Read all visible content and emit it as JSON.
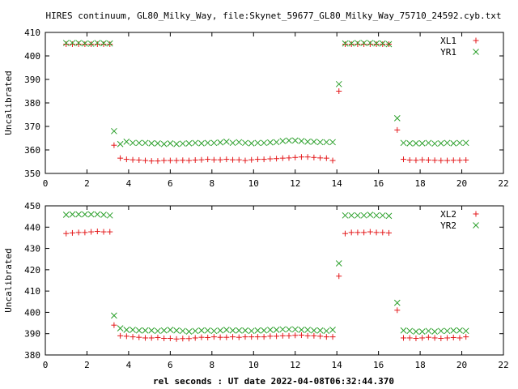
{
  "title": "HIRES continuum, GL80_Milky_Way, file:Skynet_59677_GL80_Milky_Way_75710_24592.cyb.txt",
  "xlabel": "rel seconds : UT date 2022-04-08T06:32:44.370",
  "colors": {
    "red": "#e41a1c",
    "green": "#2ca02c"
  },
  "chart_data": [
    {
      "type": "scatter",
      "ylabel": "Uncalibrated",
      "xlim": [
        0,
        22
      ],
      "ylim": [
        350,
        410
      ],
      "xticks": [
        0,
        2,
        4,
        6,
        8,
        10,
        12,
        14,
        16,
        18,
        20,
        22
      ],
      "yticks": [
        350,
        360,
        370,
        380,
        390,
        400,
        410
      ],
      "legend_position": "top-right",
      "series": [
        {
          "name": "XL1",
          "marker": "plus",
          "color": "#e41a1c",
          "x": [
            1.0,
            1.3,
            1.6,
            1.9,
            2.2,
            2.5,
            2.8,
            3.1,
            3.3,
            3.6,
            3.9,
            4.2,
            4.5,
            4.8,
            5.1,
            5.4,
            5.7,
            6.0,
            6.3,
            6.6,
            6.9,
            7.2,
            7.5,
            7.8,
            8.1,
            8.4,
            8.7,
            9.0,
            9.3,
            9.6,
            9.9,
            10.2,
            10.5,
            10.8,
            11.1,
            11.4,
            11.7,
            12.0,
            12.3,
            12.6,
            12.9,
            13.2,
            13.5,
            13.8,
            14.1,
            14.4,
            14.7,
            15.0,
            15.3,
            15.6,
            15.9,
            16.2,
            16.5,
            16.9,
            17.2,
            17.5,
            17.8,
            18.1,
            18.4,
            18.7,
            19.0,
            19.3,
            19.6,
            19.9,
            20.2
          ],
          "y": [
            405,
            405,
            405,
            405,
            405,
            405,
            405,
            405,
            362,
            356.5,
            356,
            355.8,
            355.7,
            355.5,
            355.3,
            355.3,
            355.5,
            355.5,
            355.5,
            355.6,
            355.5,
            355.7,
            355.8,
            356,
            355.8,
            355.8,
            356,
            355.8,
            355.8,
            355.5,
            355.8,
            356,
            356,
            356.2,
            356.3,
            356.5,
            356.6,
            356.8,
            357,
            357,
            356.8,
            356.6,
            356.5,
            355.5,
            385,
            405,
            405,
            405,
            405,
            405,
            405,
            405,
            405,
            368.5,
            356,
            355.7,
            355.6,
            355.8,
            355.7,
            355.6,
            355.5,
            355.5,
            355.6,
            355.6,
            355.7
          ]
        },
        {
          "name": "YR1",
          "marker": "cross",
          "color": "#2ca02c",
          "x": [
            1.0,
            1.3,
            1.6,
            1.9,
            2.2,
            2.5,
            2.8,
            3.1,
            3.3,
            3.6,
            3.9,
            4.2,
            4.5,
            4.8,
            5.1,
            5.4,
            5.7,
            6.0,
            6.3,
            6.6,
            6.9,
            7.2,
            7.5,
            7.8,
            8.1,
            8.4,
            8.7,
            9.0,
            9.3,
            9.6,
            9.9,
            10.2,
            10.5,
            10.8,
            11.1,
            11.4,
            11.7,
            12.0,
            12.3,
            12.6,
            12.9,
            13.2,
            13.5,
            13.8,
            14.1,
            14.4,
            14.7,
            15.0,
            15.3,
            15.6,
            15.9,
            16.2,
            16.5,
            16.9,
            17.2,
            17.5,
            17.8,
            18.1,
            18.4,
            18.7,
            19.0,
            19.3,
            19.6,
            19.9,
            20.2
          ],
          "y": [
            405.5,
            405.5,
            405.5,
            405.3,
            405.2,
            405.5,
            405.4,
            405.3,
            368,
            362.5,
            363.5,
            363,
            363,
            363,
            362.8,
            362.8,
            362.5,
            362.8,
            362.5,
            362.7,
            362.8,
            363,
            362.8,
            363,
            363,
            363.2,
            363.5,
            363,
            363.3,
            363,
            362.8,
            363,
            363,
            363.2,
            363.3,
            363.8,
            364,
            364,
            363.8,
            363.5,
            363.5,
            363.3,
            363.3,
            363.3,
            388,
            405.3,
            405.3,
            405.5,
            405.5,
            405.5,
            405.3,
            405.3,
            405,
            373.5,
            363,
            362.8,
            362.8,
            362.8,
            363,
            362.7,
            362.8,
            363,
            362.8,
            363,
            363
          ]
        }
      ]
    },
    {
      "type": "scatter",
      "ylabel": "Uncalibrated",
      "xlim": [
        0,
        22
      ],
      "ylim": [
        380,
        450
      ],
      "xticks": [
        0,
        2,
        4,
        6,
        8,
        10,
        12,
        14,
        16,
        18,
        20,
        22
      ],
      "yticks": [
        380,
        390,
        400,
        410,
        420,
        430,
        440,
        450
      ],
      "legend_position": "top-right",
      "series": [
        {
          "name": "XL2",
          "marker": "plus",
          "color": "#e41a1c",
          "x": [
            1.0,
            1.3,
            1.6,
            1.9,
            2.2,
            2.5,
            2.8,
            3.1,
            3.3,
            3.6,
            3.9,
            4.2,
            4.5,
            4.8,
            5.1,
            5.4,
            5.7,
            6.0,
            6.3,
            6.6,
            6.9,
            7.2,
            7.5,
            7.8,
            8.1,
            8.4,
            8.7,
            9.0,
            9.3,
            9.6,
            9.9,
            10.2,
            10.5,
            10.8,
            11.1,
            11.4,
            11.7,
            12.0,
            12.3,
            12.6,
            12.9,
            13.2,
            13.5,
            13.8,
            14.1,
            14.4,
            14.7,
            15.0,
            15.3,
            15.6,
            15.9,
            16.2,
            16.5,
            16.9,
            17.2,
            17.5,
            17.8,
            18.1,
            18.4,
            18.7,
            19.0,
            19.3,
            19.6,
            19.9,
            20.2
          ],
          "y": [
            437,
            437.3,
            437.5,
            437.5,
            437.8,
            438,
            437.8,
            437.8,
            394,
            389,
            388.8,
            388.5,
            388.3,
            388,
            388,
            388.2,
            387.8,
            387.8,
            387.5,
            387.7,
            387.7,
            388,
            388.3,
            388.2,
            388.5,
            388.3,
            388.3,
            388.5,
            388.3,
            388.5,
            388.5,
            388.5,
            388.5,
            388.8,
            388.8,
            389,
            389,
            389.2,
            389.3,
            389,
            389,
            388.8,
            388.5,
            388.5,
            417,
            437,
            437.5,
            437.5,
            437.5,
            437.8,
            437.5,
            437.5,
            437.3,
            401,
            388,
            388,
            387.8,
            388,
            388.3,
            388,
            387.8,
            388,
            388.2,
            388,
            388.5
          ]
        },
        {
          "name": "YR2",
          "marker": "cross",
          "color": "#2ca02c",
          "x": [
            1.0,
            1.3,
            1.6,
            1.9,
            2.2,
            2.5,
            2.8,
            3.1,
            3.3,
            3.6,
            3.9,
            4.2,
            4.5,
            4.8,
            5.1,
            5.4,
            5.7,
            6.0,
            6.3,
            6.6,
            6.9,
            7.2,
            7.5,
            7.8,
            8.1,
            8.4,
            8.7,
            9.0,
            9.3,
            9.6,
            9.9,
            10.2,
            10.5,
            10.8,
            11.1,
            11.4,
            11.7,
            12.0,
            12.3,
            12.6,
            12.9,
            13.2,
            13.5,
            13.8,
            14.1,
            14.4,
            14.7,
            15.0,
            15.3,
            15.6,
            15.9,
            16.2,
            16.5,
            16.9,
            17.2,
            17.5,
            17.8,
            18.1,
            18.4,
            18.7,
            19.0,
            19.3,
            19.6,
            19.9,
            20.2
          ],
          "y": [
            445.8,
            446,
            446,
            446,
            446,
            446,
            445.8,
            445.5,
            398.5,
            392.5,
            391.8,
            391.8,
            391.5,
            391.5,
            391.5,
            391.3,
            391.5,
            391.8,
            391.5,
            391.3,
            391,
            391.3,
            391.5,
            391.5,
            391.3,
            391.5,
            391.8,
            391.5,
            391.5,
            391.5,
            391.3,
            391.5,
            391.5,
            391.8,
            391.8,
            392,
            392,
            392,
            391.8,
            391.8,
            391.5,
            391.5,
            391.3,
            391.8,
            423,
            445.5,
            445.5,
            445.5,
            445.5,
            445.8,
            445.5,
            445.5,
            445.3,
            404.5,
            391.5,
            391.3,
            391,
            391,
            391.3,
            391,
            391.3,
            391.3,
            391.5,
            391.5,
            391.3
          ]
        }
      ]
    }
  ]
}
